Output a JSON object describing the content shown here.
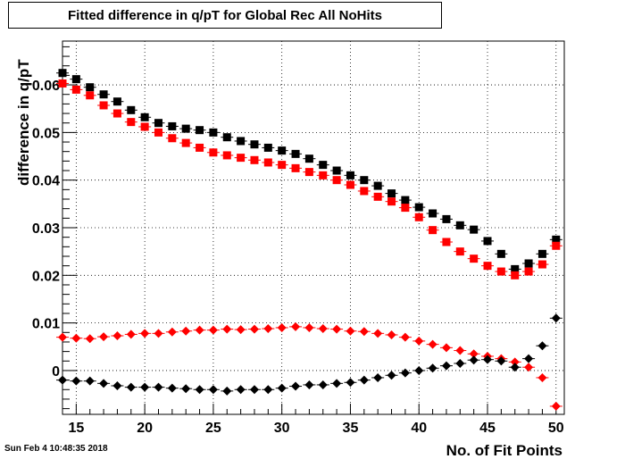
{
  "chart_data": {
    "type": "scatter",
    "title": "Fitted difference in q/pT  for Global Rec All NoHits",
    "xlabel": "No. of Fit Points",
    "ylabel": "difference in q/pT",
    "xlim": [
      14,
      50.6
    ],
    "ylim": [
      -0.0092,
      0.0692
    ],
    "x_ticks": [
      15,
      20,
      25,
      30,
      35,
      40,
      45,
      50
    ],
    "x_tick_labels": [
      "15",
      "20",
      "25",
      "30",
      "35",
      "40",
      "45",
      "50"
    ],
    "y_ticks": [
      0,
      0.01,
      0.02,
      0.03,
      0.04,
      0.05,
      0.06
    ],
    "y_tick_labels": [
      "0",
      "0.01",
      "0.02",
      "0.03",
      "0.04",
      "0.05",
      "0.06"
    ],
    "grid": true,
    "x": [
      14,
      15,
      16,
      17,
      18,
      19,
      20,
      21,
      22,
      23,
      24,
      25,
      26,
      27,
      28,
      29,
      30,
      31,
      32,
      33,
      34,
      35,
      36,
      37,
      38,
      39,
      40,
      41,
      42,
      43,
      44,
      45,
      46,
      47,
      48,
      49,
      50
    ],
    "series": [
      {
        "marker": "square",
        "color": "#000000",
        "values": [
          0.0625,
          0.0612,
          0.0595,
          0.058,
          0.0565,
          0.0547,
          0.0532,
          0.052,
          0.0513,
          0.0508,
          0.0505,
          0.05,
          0.049,
          0.0482,
          0.0475,
          0.0468,
          0.0462,
          0.0455,
          0.0445,
          0.0432,
          0.042,
          0.041,
          0.04,
          0.0388,
          0.0372,
          0.0358,
          0.0343,
          0.033,
          0.0318,
          0.0305,
          0.0296,
          0.0272,
          0.0245,
          0.0213,
          0.0225,
          0.0245,
          0.0275
        ]
      },
      {
        "marker": "square",
        "color": "#ff0000",
        "values": [
          0.0603,
          0.059,
          0.0578,
          0.0557,
          0.054,
          0.0522,
          0.0512,
          0.05,
          0.0488,
          0.0478,
          0.0468,
          0.0458,
          0.0452,
          0.0447,
          0.0442,
          0.0437,
          0.0432,
          0.0425,
          0.0417,
          0.041,
          0.04,
          0.039,
          0.0377,
          0.0365,
          0.0355,
          0.0342,
          0.0322,
          0.0295,
          0.027,
          0.025,
          0.0235,
          0.022,
          0.0208,
          0.02,
          0.0208,
          0.0223,
          0.0262
        ]
      },
      {
        "marker": "diamond",
        "color": "#ff0000",
        "values": [
          0.007,
          0.0068,
          0.0067,
          0.0071,
          0.0073,
          0.0076,
          0.0078,
          0.0078,
          0.0081,
          0.0083,
          0.0085,
          0.0085,
          0.0087,
          0.0086,
          0.0087,
          0.0088,
          0.009,
          0.0092,
          0.009,
          0.0088,
          0.0087,
          0.0083,
          0.0082,
          0.0078,
          0.0075,
          0.007,
          0.0062,
          0.0055,
          0.0048,
          0.0042,
          0.0035,
          0.003,
          0.0025,
          0.0018,
          0.0007,
          -0.0015,
          -0.0075
        ]
      },
      {
        "marker": "diamond",
        "color": "#000000",
        "values": [
          -0.002,
          -0.0022,
          -0.0022,
          -0.0027,
          -0.0032,
          -0.0035,
          -0.0035,
          -0.0035,
          -0.0037,
          -0.0038,
          -0.004,
          -0.004,
          -0.0043,
          -0.004,
          -0.004,
          -0.004,
          -0.0037,
          -0.0033,
          -0.003,
          -0.003,
          -0.0027,
          -0.0025,
          -0.002,
          -0.0015,
          -0.001,
          -0.0005,
          0.0,
          0.0005,
          0.001,
          0.0015,
          0.0022,
          0.0023,
          0.002,
          0.0007,
          0.0025,
          0.0052,
          0.011
        ]
      }
    ]
  },
  "footer": {
    "timestamp": "Sun Feb  4 10:48:35 2018"
  }
}
